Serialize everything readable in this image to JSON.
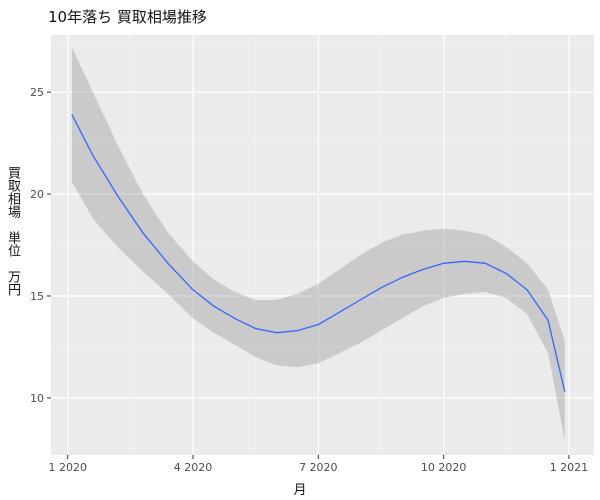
{
  "chart_data": {
    "type": "line",
    "title": "10年落ち 買取相場推移",
    "xlabel": "月",
    "ylabel": "買取相場　単位　万円",
    "x_ticks": [
      "1 2020",
      "4 2020",
      "7 2020",
      "10 2020",
      "1 2021"
    ],
    "x_tick_values": [
      0,
      3,
      6,
      9,
      12
    ],
    "y_ticks": [
      "10",
      "15",
      "20",
      "25"
    ],
    "y_tick_values": [
      10,
      15,
      20,
      25
    ],
    "xlim": [
      -0.4,
      12.6
    ],
    "ylim": [
      7.2,
      27.8
    ],
    "grid": true,
    "series": [
      {
        "color": "#3366FF",
        "x": [
          0.1,
          0.6,
          1.2,
          1.8,
          2.4,
          3.0,
          3.5,
          4.0,
          4.5,
          5.0,
          5.5,
          6.0,
          6.5,
          7.0,
          7.5,
          8.0,
          8.5,
          9.0,
          9.5,
          10.0,
          10.5,
          11.0,
          11.5,
          11.9
        ],
        "y": [
          23.9,
          21.9,
          19.9,
          18.1,
          16.6,
          15.3,
          14.5,
          13.9,
          13.4,
          13.2,
          13.3,
          13.6,
          14.2,
          14.8,
          15.4,
          15.9,
          16.3,
          16.6,
          16.7,
          16.6,
          16.1,
          15.3,
          13.8,
          10.3
        ],
        "ci_upper": [
          27.2,
          25.0,
          22.4,
          20.0,
          18.1,
          16.7,
          15.8,
          15.2,
          14.8,
          14.8,
          15.1,
          15.6,
          16.3,
          17.0,
          17.6,
          18.0,
          18.2,
          18.3,
          18.2,
          18.0,
          17.4,
          16.6,
          15.3,
          12.8
        ],
        "ci_lower": [
          20.6,
          18.8,
          17.4,
          16.2,
          15.1,
          13.9,
          13.2,
          12.6,
          12.0,
          11.6,
          11.5,
          11.7,
          12.2,
          12.7,
          13.3,
          13.9,
          14.5,
          14.9,
          15.1,
          15.2,
          14.9,
          14.1,
          12.2,
          7.9
        ]
      }
    ]
  }
}
